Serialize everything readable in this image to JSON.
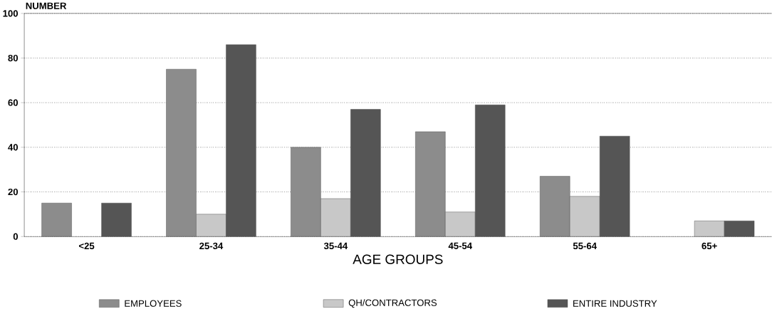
{
  "chart_data": {
    "type": "bar",
    "ylabel": "NUMBER",
    "xlabel": "AGE GROUPS",
    "categories": [
      "<25",
      "25-34",
      "35-44",
      "45-54",
      "55-64",
      "65+"
    ],
    "series": [
      {
        "name": "EMPLOYEES",
        "color": "#8c8c8c",
        "values": [
          15,
          75,
          40,
          47,
          27,
          null
        ]
      },
      {
        "name": "QH/CONTRACTORS",
        "color": "#c8c8c8",
        "values": [
          null,
          10,
          17,
          11,
          18,
          7
        ]
      },
      {
        "name": "ENTIRE INDUSTRY",
        "color": "#555555",
        "values": [
          15,
          86,
          57,
          59,
          45,
          7
        ]
      }
    ],
    "ylim": [
      0,
      100
    ],
    "yticks": [
      0,
      20,
      40,
      60,
      80,
      100
    ],
    "grid": "y",
    "legend": "bottom"
  }
}
